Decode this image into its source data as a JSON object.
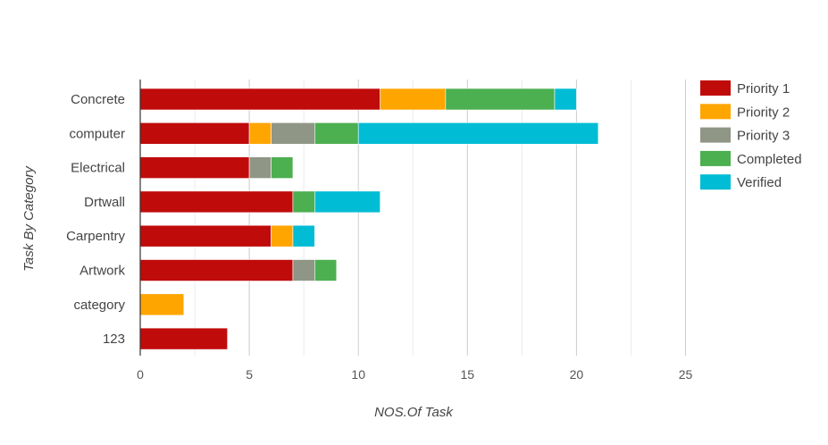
{
  "chart_data": {
    "type": "bar",
    "orientation": "horizontal",
    "stacked": true,
    "categories": [
      "Concrete",
      "computer",
      "Electrical",
      "Drtwall",
      "Carpentry",
      "Artwork",
      "category",
      "123"
    ],
    "series": [
      {
        "name": "Priority 1",
        "color": "#c00b0b",
        "values": [
          11,
          5,
          5,
          7,
          6,
          7,
          0,
          4
        ]
      },
      {
        "name": "Priority 2",
        "color": "#ffa500",
        "values": [
          3,
          1,
          0,
          0,
          1,
          0,
          2,
          0
        ]
      },
      {
        "name": "Priority 3",
        "color": "#909685",
        "values": [
          0,
          2,
          1,
          0,
          0,
          1,
          0,
          0
        ]
      },
      {
        "name": "Completed",
        "color": "#4caf50",
        "values": [
          5,
          2,
          1,
          1,
          0,
          1,
          0,
          0
        ]
      },
      {
        "name": "Verified",
        "color": "#00bcd4",
        "values": [
          1,
          11,
          0,
          3,
          1,
          0,
          0,
          0
        ]
      }
    ],
    "xlim": [
      0,
      25
    ],
    "xticks": [
      "0",
      "5",
      "10",
      "15",
      "20",
      "25"
    ],
    "xlabel": "NOS.Of Task",
    "ylabel": "Task By Category",
    "grid": true,
    "legend_position": "right"
  }
}
